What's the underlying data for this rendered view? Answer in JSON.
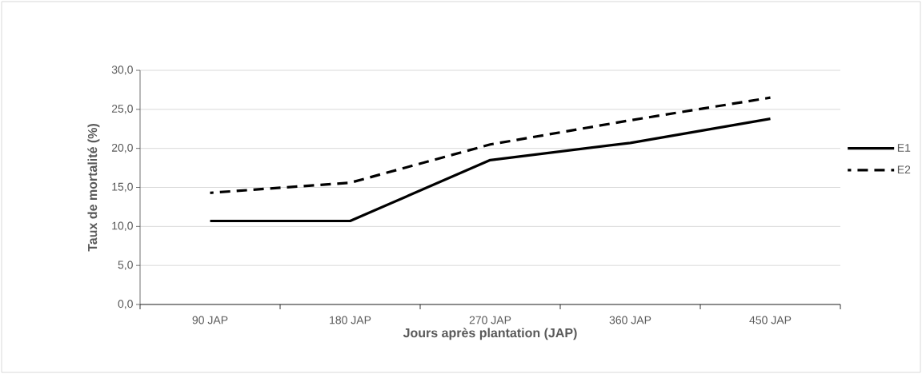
{
  "chart_data": {
    "type": "line",
    "xlabel": "Jours après plantation (JAP)",
    "ylabel": "Taux de mortalité (%)",
    "categories": [
      "90 JAP",
      "180 JAP",
      "270 JAP",
      "360 JAP",
      "450 JAP"
    ],
    "series": [
      {
        "name": "E1",
        "color": "#000000",
        "line_style": "solid",
        "values": [
          10.7,
          10.7,
          18.5,
          20.7,
          23.8
        ]
      },
      {
        "name": "E2",
        "color": "#000000",
        "line_style": "dashed",
        "values": [
          14.3,
          15.6,
          20.5,
          23.6,
          26.5
        ]
      }
    ],
    "ylim": [
      0,
      30
    ],
    "yticks": [
      {
        "value": 0,
        "label": "0,0"
      },
      {
        "value": 5,
        "label": "5,0"
      },
      {
        "value": 10,
        "label": "10,0"
      },
      {
        "value": 15,
        "label": "15,0"
      },
      {
        "value": 20,
        "label": "20,0"
      },
      {
        "value": 25,
        "label": "25,0"
      },
      {
        "value": 30,
        "label": "30,0"
      }
    ],
    "grid": "y",
    "legend": "right",
    "marker": "none"
  }
}
